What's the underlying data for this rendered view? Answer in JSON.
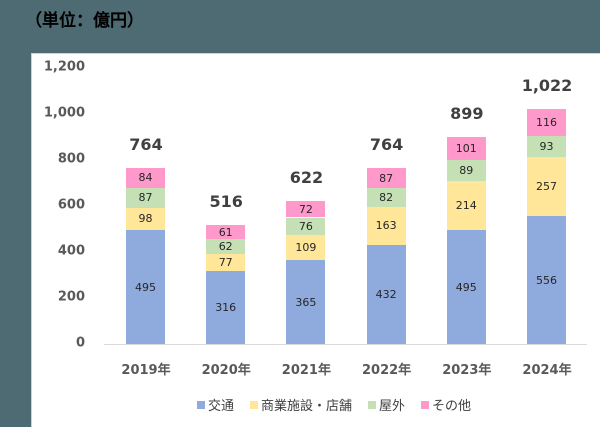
{
  "header": {
    "unit_label": "（単位：億円）"
  },
  "colors": {
    "background": "#4E6A72",
    "transport": "#8FAADC",
    "commercial": "#FFE699",
    "outdoor": "#C5E0B4",
    "other": "#FF99CC",
    "axis": "#D9D9D9"
  },
  "legend": [
    {
      "name": "交通",
      "color": "#8FAADC"
    },
    {
      "name": "商業施設・店舗",
      "color": "#FFE699"
    },
    {
      "name": "屋外",
      "color": "#C5E0B4"
    },
    {
      "name": "その他",
      "color": "#FF99CC"
    }
  ],
  "yaxis": {
    "ticks": [
      "1,200",
      "1,000",
      "800",
      "600",
      "400",
      "200",
      "0"
    ]
  },
  "chart_data": {
    "type": "bar",
    "stacked": true,
    "title": "（単位：億円）",
    "xlabel": "",
    "ylabel": "億円",
    "ylim": [
      0,
      1200
    ],
    "yticks": [
      0,
      200,
      400,
      600,
      800,
      1000,
      1200
    ],
    "grid": false,
    "legend_position": "bottom",
    "categories": [
      "2019年",
      "2020年",
      "2021年",
      "2022年",
      "2023年",
      "2024年"
    ],
    "series": [
      {
        "name": "交通",
        "values": [
          495,
          316,
          365,
          432,
          495,
          556
        ]
      },
      {
        "name": "商業施設・店舗",
        "values": [
          98,
          77,
          109,
          163,
          214,
          257
        ]
      },
      {
        "name": "屋外",
        "values": [
          87,
          62,
          76,
          82,
          89,
          93
        ]
      },
      {
        "name": "その他",
        "values": [
          84,
          61,
          72,
          87,
          101,
          116
        ]
      }
    ],
    "totals": [
      764,
      516,
      622,
      764,
      899,
      1022
    ],
    "total_labels": [
      "764",
      "516",
      "622",
      "764",
      "899",
      "1,022"
    ]
  }
}
